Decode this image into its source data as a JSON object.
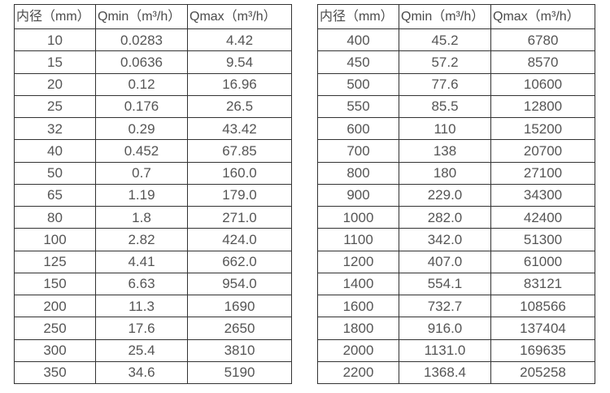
{
  "page": {
    "background_color": "#ffffff",
    "border_color": "#333333",
    "text_color": "#555555"
  },
  "tables": [
    {
      "name": "small-diameter-flow-table",
      "headers": [
        "内径（mm）",
        "Qmin（m³/h）",
        "Qmax（m³/h）"
      ],
      "rows": [
        [
          "10",
          "0.0283",
          "4.42"
        ],
        [
          "15",
          "0.0636",
          "9.54"
        ],
        [
          "20",
          "0.12",
          "16.96"
        ],
        [
          "25",
          "0.176",
          "26.5"
        ],
        [
          "32",
          "0.29",
          "43.42"
        ],
        [
          "40",
          "0.452",
          "67.85"
        ],
        [
          "50",
          "0.7",
          "160.0"
        ],
        [
          "65",
          "1.19",
          "179.0"
        ],
        [
          "80",
          "1.8",
          "271.0"
        ],
        [
          "100",
          "2.82",
          "424.0"
        ],
        [
          "125",
          "4.41",
          "662.0"
        ],
        [
          "150",
          "6.63",
          "954.0"
        ],
        [
          "200",
          "11.3",
          "1690"
        ],
        [
          "250",
          "17.6",
          "2650"
        ],
        [
          "300",
          "25.4",
          "3810"
        ],
        [
          "350",
          "34.6",
          "5190"
        ]
      ]
    },
    {
      "name": "large-diameter-flow-table",
      "headers": [
        "内径（mm）",
        "Qmin（m³/h）",
        "Qmax（m³/h）"
      ],
      "rows": [
        [
          "400",
          "45.2",
          "6780"
        ],
        [
          "450",
          "57.2",
          "8570"
        ],
        [
          "500",
          "77.6",
          "10600"
        ],
        [
          "550",
          "85.5",
          "12800"
        ],
        [
          "600",
          "110",
          "15200"
        ],
        [
          "700",
          "138",
          "20700"
        ],
        [
          "800",
          "180",
          "27100"
        ],
        [
          "900",
          "229.0",
          "34300"
        ],
        [
          "1000",
          "282.0",
          "42400"
        ],
        [
          "1100",
          "342.0",
          "51300"
        ],
        [
          "1200",
          "407.0",
          "61000"
        ],
        [
          "1400",
          "554.1",
          "83121"
        ],
        [
          "1600",
          "732.7",
          "108566"
        ],
        [
          "1800",
          "916.0",
          "137404"
        ],
        [
          "2000",
          "1131.0",
          "169635"
        ],
        [
          "2200",
          "1368.4",
          "205258"
        ]
      ]
    }
  ]
}
